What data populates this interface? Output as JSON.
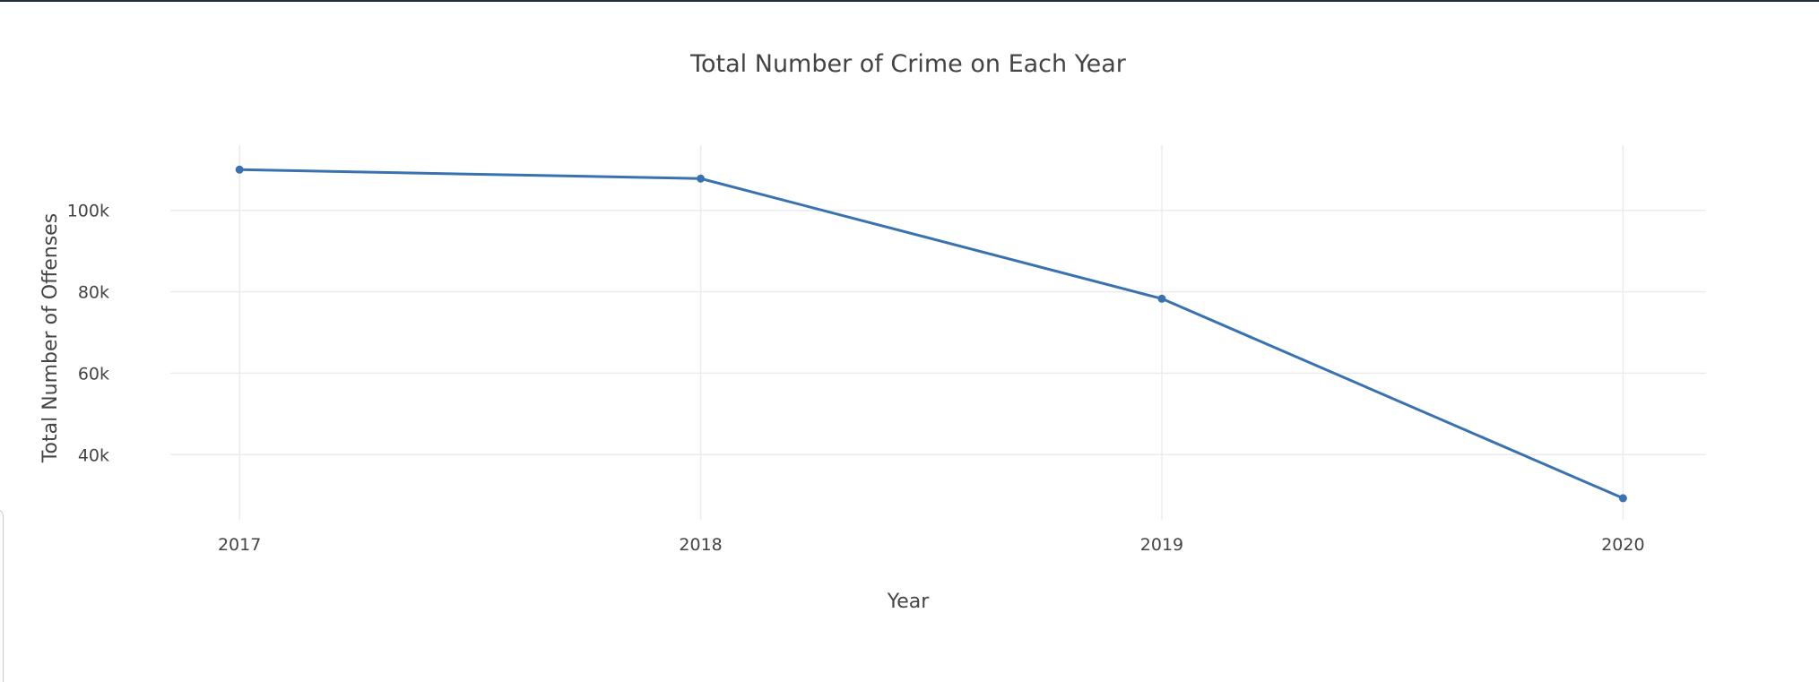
{
  "chart_data": {
    "type": "line",
    "title": "Total Number of Crime on Each Year",
    "xlabel": "Year",
    "ylabel": "Total Number of Offenses",
    "x": [
      2017,
      2018,
      2019,
      2020
    ],
    "x_tick_labels": [
      "2017",
      "2018",
      "2019",
      "2020"
    ],
    "series": [
      {
        "values": [
          110000,
          107800,
          78300,
          29300
        ]
      }
    ],
    "ylim": [
      24000,
      116000
    ],
    "xlim": [
      2016.85,
      2020.18
    ],
    "y_ticks": [
      40000,
      60000,
      80000,
      100000
    ],
    "y_tick_labels": [
      "40k",
      "60k",
      "80k",
      "100k"
    ],
    "grid": true,
    "legend": "none",
    "markers": true
  },
  "colors": {
    "line": "#3a72b0",
    "grid": "#ebebeb",
    "text": "#444444"
  }
}
